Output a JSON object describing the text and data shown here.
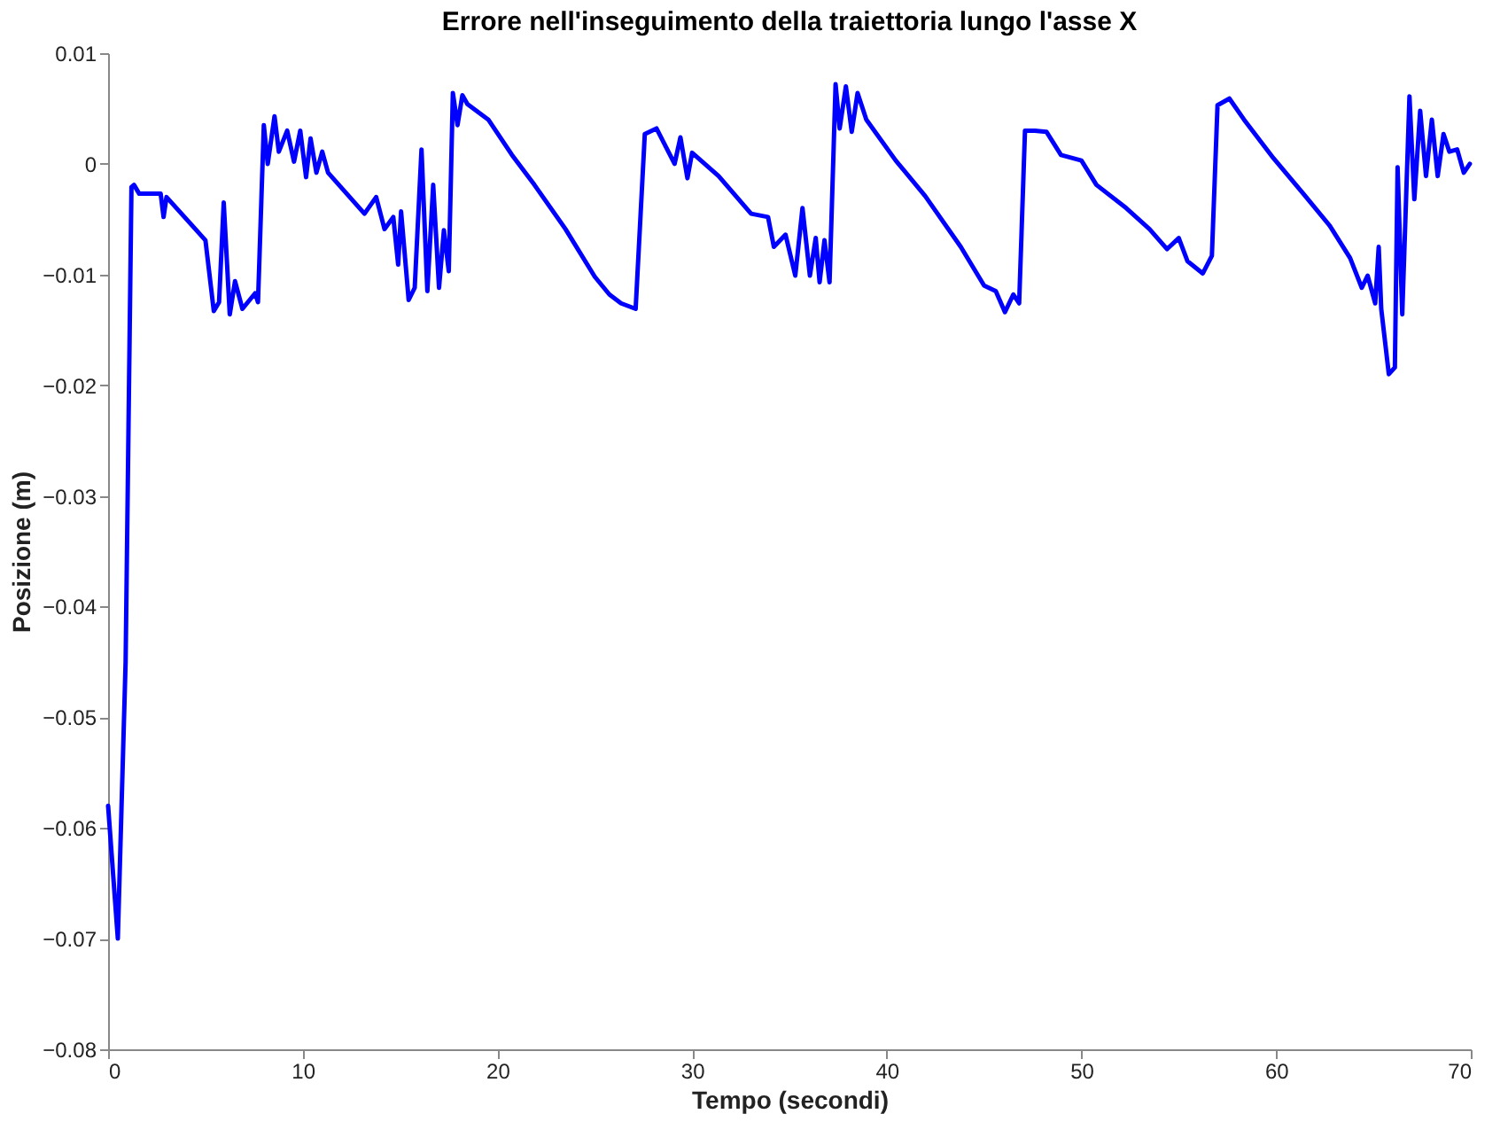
{
  "chart_data": {
    "type": "line",
    "title": "Errore nell'inseguimento della traiettoria lungo l'asse X",
    "xlabel": "Tempo (secondi)",
    "ylabel": "Posizione (m)",
    "x": [
      0,
      0.5,
      0.9,
      1.2,
      1.33,
      1.6,
      2.7,
      2.85,
      3.0,
      5.0,
      5.43,
      5.7,
      5.94,
      6.25,
      6.52,
      6.9,
      7.55,
      7.7,
      8.0,
      8.2,
      8.55,
      8.77,
      9.2,
      9.55,
      9.87,
      10.17,
      10.4,
      10.7,
      11.0,
      11.3,
      13.17,
      13.77,
      14.2,
      14.65,
      14.9,
      15.05,
      15.44,
      15.75,
      16.1,
      16.4,
      16.7,
      17.0,
      17.25,
      17.5,
      17.71,
      17.95,
      18.2,
      18.46,
      19.53,
      20.75,
      21.9,
      23.5,
      25.0,
      25.75,
      26.35,
      27.1,
      27.57,
      28.17,
      29.1,
      29.4,
      29.76,
      30.0,
      31.36,
      33.03,
      33.9,
      34.2,
      34.8,
      35.3,
      35.67,
      36.05,
      36.35,
      36.55,
      36.8,
      37.06,
      37.37,
      37.58,
      37.9,
      38.2,
      38.5,
      38.95,
      40.46,
      41.97,
      43.8,
      45.0,
      45.6,
      46.07,
      46.5,
      46.8,
      47.1,
      47.6,
      48.2,
      48.95,
      50.0,
      50.77,
      52.3,
      53.5,
      54.4,
      55.0,
      55.45,
      56.23,
      56.7,
      56.99,
      57.6,
      58.35,
      59.87,
      61.4,
      62.76,
      63.8,
      64.4,
      64.7,
      65.09,
      65.27,
      65.4,
      65.79,
      66.1,
      66.24,
      66.48,
      66.85,
      67.1,
      67.4,
      67.7,
      68.0,
      68.3,
      68.6,
      68.9,
      69.3,
      69.64,
      69.95
    ],
    "series": [
      {
        "color": "#0000ff",
        "values": [
          -0.058,
          -0.07,
          -0.045,
          -0.0021,
          -0.0019,
          -0.0027,
          -0.0027,
          -0.0048,
          -0.003,
          -0.0069,
          -0.0133,
          -0.0125,
          -0.0035,
          -0.0136,
          -0.0106,
          -0.0131,
          -0.0117,
          -0.0125,
          0.0035,
          0.0,
          0.0043,
          0.0011,
          0.003,
          0.0002,
          0.003,
          -0.0012,
          0.0023,
          -0.0008,
          0.0011,
          -0.0008,
          -0.0045,
          -0.003,
          -0.0059,
          -0.0048,
          -0.0091,
          -0.0043,
          -0.0123,
          -0.0112,
          0.0013,
          -0.0115,
          -0.0019,
          -0.0112,
          -0.006,
          -0.0097,
          0.0064,
          0.0035,
          0.0062,
          0.0054,
          0.004,
          0.0008,
          -0.0019,
          -0.0059,
          -0.0102,
          -0.0118,
          -0.0126,
          -0.0131,
          0.0027,
          0.0032,
          0.0,
          0.0024,
          -0.0013,
          0.001,
          -0.0011,
          -0.0045,
          -0.0048,
          -0.0075,
          -0.0064,
          -0.0101,
          -0.004,
          -0.0101,
          -0.0067,
          -0.0107,
          -0.0069,
          -0.0107,
          0.0072,
          0.0032,
          0.007,
          0.0029,
          0.0064,
          0.004,
          0.0003,
          -0.0029,
          -0.0075,
          -0.011,
          -0.0115,
          -0.0134,
          -0.0118,
          -0.0126,
          0.003,
          0.003,
          0.0029,
          0.0008,
          0.0003,
          -0.0019,
          -0.004,
          -0.0059,
          -0.0077,
          -0.0067,
          -0.0088,
          -0.0099,
          -0.0083,
          0.0053,
          0.0059,
          0.004,
          0.0005,
          -0.0027,
          -0.0056,
          -0.0085,
          -0.0112,
          -0.0101,
          -0.0126,
          -0.0075,
          -0.0131,
          -0.019,
          -0.0184,
          -0.0003,
          -0.0136,
          0.0061,
          -0.0032,
          0.0048,
          -0.0011,
          0.004,
          -0.0011,
          0.0027,
          0.0011,
          0.0013,
          -0.0008,
          0.0
        ]
      }
    ],
    "xlim": [
      0,
      70
    ],
    "xticks": [
      0,
      10,
      20,
      30,
      40,
      50,
      60,
      70
    ],
    "ylim": [
      -0.08,
      0.01
    ],
    "yticks": [
      -0.08,
      -0.07,
      -0.06,
      -0.05,
      -0.04,
      -0.03,
      -0.02,
      -0.01,
      0,
      0.01
    ],
    "grid": false,
    "marker": "none",
    "line_style": "solid"
  }
}
